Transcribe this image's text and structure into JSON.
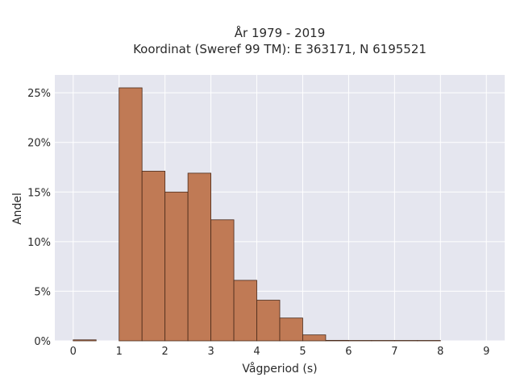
{
  "chart_data": {
    "type": "bar",
    "title_lines": [
      "År 1979 - 2019",
      "Koordinat (Sweref 99 TM): E 363171, N 6195521"
    ],
    "xlabel": "Vågperiod (s)",
    "ylabel": "Andel",
    "bin_width": 0.5,
    "bin_starts": [
      0,
      0.5,
      1,
      1.5,
      2,
      2.5,
      3,
      3.5,
      4,
      4.5,
      5,
      5.5,
      6,
      6.5,
      7,
      7.5,
      8,
      8.5
    ],
    "values": [
      0.1,
      0.0,
      25.5,
      17.1,
      15.0,
      16.9,
      12.2,
      6.1,
      4.1,
      2.3,
      0.6,
      0.05,
      0.04,
      0.04,
      0.04,
      0.04,
      0.0,
      0.0
    ],
    "xlim": [
      -0.4,
      9.4
    ],
    "ylim": [
      0,
      26.8
    ],
    "x_ticks": [
      0,
      1,
      2,
      3,
      4,
      5,
      6,
      7,
      8,
      9
    ],
    "x_tick_labels": [
      "0",
      "1",
      "2",
      "3",
      "4",
      "5",
      "6",
      "7",
      "8",
      "9"
    ],
    "y_ticks": [
      0,
      5,
      10,
      15,
      20,
      25
    ],
    "y_tick_labels": [
      "0%",
      "5%",
      "10%",
      "15%",
      "20%",
      "25%"
    ],
    "grid": true,
    "colors": {
      "bar_fill": "#c07a55",
      "bar_stroke": "#4a2a1a",
      "plot_bg": "#e5e6ef",
      "grid": "#ffffff"
    }
  }
}
